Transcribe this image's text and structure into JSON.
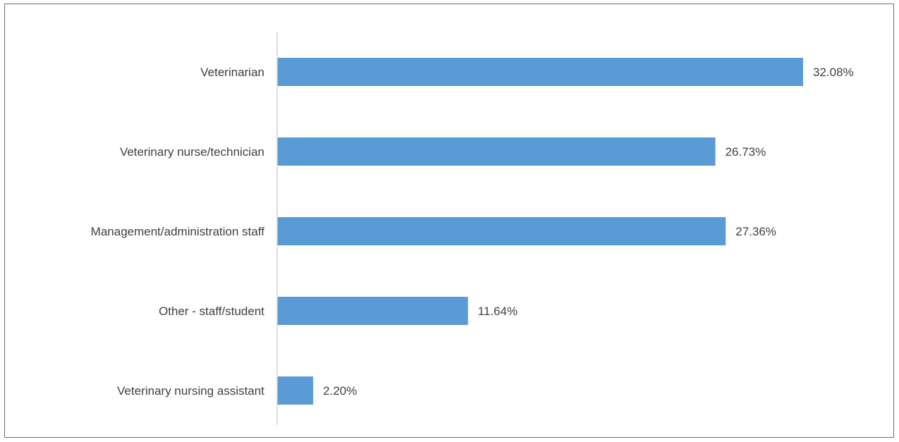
{
  "chart_data": {
    "type": "bar",
    "orientation": "horizontal",
    "title": "",
    "xlabel": "",
    "ylabel": "",
    "categories": [
      "Veterinarian",
      "Veterinary nurse/technician",
      "Management/administration staff",
      "Other - staff/student",
      "Veterinary nursing assistant"
    ],
    "values": [
      32.08,
      26.73,
      27.36,
      11.64,
      2.2
    ],
    "value_labels": [
      "32.08%",
      "26.73%",
      "27.36%",
      "11.64%",
      "2.20%"
    ],
    "xlim": [
      0,
      32.08
    ],
    "grid": false,
    "legend": "none",
    "bar_color": "#5b9bd5",
    "axis_color": "#d9d9d9",
    "text_color": "#404040"
  }
}
